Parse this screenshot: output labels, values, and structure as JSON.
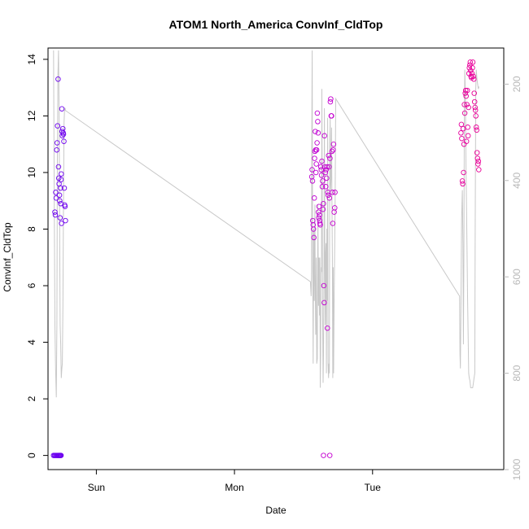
{
  "colors": {
    "background": "#ffffff",
    "axis": "#000000",
    "secondary_axis": "#b8b8b8",
    "pressure_line": "#c8c8c8",
    "point_sequence": [
      "#6a00f0",
      "#9a00e8",
      "#cc00cc",
      "#f0008c"
    ]
  },
  "chart_data": {
    "type": "scatter",
    "title": "ATOM1 North_America ConvInf_CldTop",
    "xlabel": "Date",
    "ylabel": "ConvInf_CldTop",
    "x_unit": "days since Saturday 00:00 (tick labels show weekday names)",
    "xlim": [
      0.65,
      3.95
    ],
    "ylim": [
      -0.5,
      14.4
    ],
    "grid": false,
    "legend": "none",
    "x_ticks": [
      {
        "value": 1,
        "label": "Sun"
      },
      {
        "value": 2,
        "label": "Mon"
      },
      {
        "value": 3,
        "label": "Tue"
      }
    ],
    "y_ticks": [
      0,
      2,
      4,
      6,
      8,
      10,
      12,
      14
    ],
    "y2_ticks": [
      200,
      400,
      600,
      800,
      1000
    ],
    "y2_lim": [
      1000,
      125
    ],
    "y2_reversed": true,
    "series": [
      {
        "kind": "scatter",
        "points": [
          [
            0.7,
            8.6
          ],
          [
            0.703,
            8.5
          ],
          [
            0.706,
            9.3
          ],
          [
            0.709,
            9.1
          ],
          [
            0.713,
            10.8
          ],
          [
            0.716,
            11.05
          ],
          [
            0.719,
            11.65
          ],
          [
            0.723,
            13.3
          ],
          [
            0.726,
            10.2
          ],
          [
            0.728,
            9.8
          ],
          [
            0.73,
            9.6
          ],
          [
            0.733,
            9.2
          ],
          [
            0.735,
            9.0
          ],
          [
            0.737,
            8.4
          ],
          [
            0.74,
            9.45
          ],
          [
            0.742,
            8.9
          ],
          [
            0.744,
            9.75
          ],
          [
            0.746,
            9.95
          ],
          [
            0.748,
            8.2
          ],
          [
            0.75,
            12.25
          ],
          [
            0.752,
            11.45
          ],
          [
            0.754,
            11.3
          ],
          [
            0.757,
            11.55
          ],
          [
            0.76,
            11.4
          ],
          [
            0.762,
            11.35
          ],
          [
            0.765,
            11.1
          ],
          [
            0.768,
            9.45
          ],
          [
            0.771,
            8.85
          ],
          [
            0.773,
            8.8
          ],
          [
            0.776,
            8.3
          ],
          [
            0.69,
            0.0
          ],
          [
            0.697,
            0.0
          ],
          [
            0.703,
            0.0
          ],
          [
            0.71,
            0.0
          ],
          [
            0.716,
            0.0
          ],
          [
            0.722,
            0.0
          ],
          [
            0.727,
            0.0
          ],
          [
            0.731,
            0.0
          ],
          [
            0.735,
            0.0
          ],
          [
            0.738,
            0.0
          ],
          [
            0.741,
            0.0
          ],
          [
            0.744,
            0.0
          ],
          [
            2.56,
            9.85
          ],
          [
            2.562,
            10.1
          ],
          [
            2.565,
            9.7
          ],
          [
            2.567,
            8.3
          ],
          [
            2.57,
            8.15
          ],
          [
            2.572,
            8.0
          ],
          [
            2.575,
            7.7
          ],
          [
            2.578,
            9.1
          ],
          [
            2.58,
            10.5
          ],
          [
            2.582,
            10.75
          ],
          [
            2.585,
            11.45
          ],
          [
            2.588,
            10.8
          ],
          [
            2.59,
            10.0
          ],
          [
            2.593,
            10.3
          ],
          [
            2.595,
            10.8
          ],
          [
            2.598,
            11.05
          ],
          [
            2.6,
            12.1
          ],
          [
            2.603,
            11.8
          ],
          [
            2.606,
            11.4
          ],
          [
            2.608,
            8.6
          ],
          [
            2.61,
            8.4
          ],
          [
            2.612,
            8.8
          ],
          [
            2.615,
            8.5
          ],
          [
            2.617,
            8.3
          ],
          [
            2.619,
            8.2
          ],
          [
            2.622,
            8.15
          ],
          [
            2.625,
            10.2
          ],
          [
            2.628,
            10.1
          ],
          [
            2.63,
            9.9
          ],
          [
            2.633,
            10.4
          ],
          [
            2.636,
            9.5
          ],
          [
            2.638,
            9.7
          ],
          [
            2.641,
            8.7
          ],
          [
            2.644,
            8.9
          ],
          [
            2.647,
            6.0
          ],
          [
            2.65,
            5.4
          ],
          [
            2.652,
            11.3
          ],
          [
            2.655,
            10.2
          ],
          [
            2.658,
            10.0
          ],
          [
            2.661,
            9.5
          ],
          [
            2.664,
            10.1
          ],
          [
            2.667,
            9.8
          ],
          [
            2.67,
            10.2
          ],
          [
            2.673,
            4.5
          ],
          [
            2.676,
            9.3
          ],
          [
            2.679,
            9.2
          ],
          [
            2.682,
            10.6
          ],
          [
            2.685,
            10.2
          ],
          [
            2.688,
            9.1
          ],
          [
            2.691,
            10.5
          ],
          [
            2.694,
            12.5
          ],
          [
            2.697,
            12.6
          ],
          [
            2.7,
            12.0
          ],
          [
            2.703,
            12.0
          ],
          [
            2.706,
            10.75
          ],
          [
            2.709,
            9.3
          ],
          [
            2.712,
            8.2
          ],
          [
            2.715,
            10.8
          ],
          [
            2.718,
            11.0
          ],
          [
            2.722,
            8.6
          ],
          [
            2.726,
            8.75
          ],
          [
            2.728,
            9.3
          ],
          [
            2.645,
            0.0
          ],
          [
            2.69,
            0.0
          ],
          [
            3.64,
            11.4
          ],
          [
            3.643,
            11.7
          ],
          [
            3.646,
            11.2
          ],
          [
            3.65,
            9.7
          ],
          [
            3.653,
            9.6
          ],
          [
            3.656,
            11.55
          ],
          [
            3.659,
            10.0
          ],
          [
            3.662,
            11.0
          ],
          [
            3.665,
            12.4
          ],
          [
            3.668,
            12.1
          ],
          [
            3.671,
            12.8
          ],
          [
            3.674,
            12.9
          ],
          [
            3.677,
            12.7
          ],
          [
            3.68,
            11.1
          ],
          [
            3.683,
            12.4
          ],
          [
            3.686,
            12.9
          ],
          [
            3.689,
            11.6
          ],
          [
            3.692,
            11.3
          ],
          [
            3.695,
            12.3
          ],
          [
            3.698,
            13.5
          ],
          [
            3.701,
            13.7
          ],
          [
            3.704,
            13.8
          ],
          [
            3.707,
            13.9
          ],
          [
            3.71,
            13.6
          ],
          [
            3.713,
            13.4
          ],
          [
            3.716,
            13.35
          ],
          [
            3.72,
            13.5
          ],
          [
            3.723,
            13.7
          ],
          [
            3.726,
            13.9
          ],
          [
            3.729,
            13.4
          ],
          [
            3.733,
            13.3
          ],
          [
            3.736,
            12.8
          ],
          [
            3.739,
            12.5
          ],
          [
            3.742,
            12.3
          ],
          [
            3.745,
            12.2
          ],
          [
            3.748,
            12.0
          ],
          [
            3.751,
            11.6
          ],
          [
            3.754,
            11.5
          ],
          [
            3.757,
            10.7
          ],
          [
            3.76,
            10.5
          ],
          [
            3.763,
            10.3
          ],
          [
            3.766,
            10.4
          ],
          [
            3.769,
            10.1
          ]
        ]
      },
      {
        "kind": "line",
        "axis": "y2",
        "points": [
          [
            0.69,
            130
          ],
          [
            0.695,
            420
          ],
          [
            0.7,
            700
          ],
          [
            0.705,
            790
          ],
          [
            0.71,
            850
          ],
          [
            0.714,
            700
          ],
          [
            0.718,
            350
          ],
          [
            0.722,
            180
          ],
          [
            0.726,
            130
          ],
          [
            0.73,
            250
          ],
          [
            0.734,
            500
          ],
          [
            0.738,
            700
          ],
          [
            0.742,
            740
          ],
          [
            0.746,
            810
          ],
          [
            0.75,
            790
          ],
          [
            0.754,
            780
          ],
          [
            0.758,
            660
          ],
          [
            0.762,
            450
          ],
          [
            0.766,
            280
          ],
          [
            0.77,
            250
          ],
          [
            0.774,
            250
          ],
          [
            0.778,
            255
          ],
          [
            2.55,
            610
          ],
          [
            2.555,
            640
          ],
          [
            2.558,
            590
          ],
          [
            2.56,
            300
          ],
          [
            2.563,
            130
          ],
          [
            2.566,
            520
          ],
          [
            2.57,
            780
          ],
          [
            2.574,
            500
          ],
          [
            2.578,
            650
          ],
          [
            2.582,
            450
          ],
          [
            2.585,
            620
          ],
          [
            2.588,
            720
          ],
          [
            2.592,
            560
          ],
          [
            2.596,
            780
          ],
          [
            2.6,
            770
          ],
          [
            2.604,
            450
          ],
          [
            2.608,
            660
          ],
          [
            2.612,
            560
          ],
          [
            2.615,
            680
          ],
          [
            2.618,
            560
          ],
          [
            2.621,
            830
          ],
          [
            2.624,
            760
          ],
          [
            2.627,
            580
          ],
          [
            2.63,
            590
          ],
          [
            2.633,
            210
          ],
          [
            2.636,
            450
          ],
          [
            2.639,
            700
          ],
          [
            2.642,
            820
          ],
          [
            2.645,
            760
          ],
          [
            2.648,
            600
          ],
          [
            2.651,
            250
          ],
          [
            2.654,
            560
          ],
          [
            2.657,
            700
          ],
          [
            2.66,
            550
          ],
          [
            2.663,
            530
          ],
          [
            2.666,
            800
          ],
          [
            2.669,
            500
          ],
          [
            2.672,
            650
          ],
          [
            2.675,
            270
          ],
          [
            2.678,
            780
          ],
          [
            2.681,
            810
          ],
          [
            2.684,
            780
          ],
          [
            2.687,
            800
          ],
          [
            2.69,
            320
          ],
          [
            2.693,
            270
          ],
          [
            2.696,
            420
          ],
          [
            2.7,
            390
          ],
          [
            2.703,
            290
          ],
          [
            2.706,
            450
          ],
          [
            2.709,
            560
          ],
          [
            2.712,
            810
          ],
          [
            2.715,
            580
          ],
          [
            2.718,
            800
          ],
          [
            2.722,
            640
          ],
          [
            2.726,
            530
          ],
          [
            2.729,
            440
          ],
          [
            2.733,
            230
          ],
          [
            3.63,
            640
          ],
          [
            3.633,
            760
          ],
          [
            3.636,
            790
          ],
          [
            3.64,
            660
          ],
          [
            3.645,
            480
          ],
          [
            3.65,
            420
          ],
          [
            3.654,
            530
          ],
          [
            3.658,
            740
          ],
          [
            3.661,
            560
          ],
          [
            3.664,
            290
          ],
          [
            3.668,
            170
          ],
          [
            3.672,
            220
          ],
          [
            3.676,
            360
          ],
          [
            3.68,
            450
          ],
          [
            3.684,
            550
          ],
          [
            3.688,
            640
          ],
          [
            3.692,
            720
          ],
          [
            3.696,
            800
          ],
          [
            3.7,
            810
          ],
          [
            3.705,
            815
          ],
          [
            3.71,
            830
          ],
          [
            3.715,
            830
          ],
          [
            3.72,
            830
          ],
          [
            3.725,
            830
          ],
          [
            3.73,
            820
          ],
          [
            3.735,
            810
          ],
          [
            3.74,
            800
          ],
          [
            3.743,
            500
          ],
          [
            3.747,
            210
          ],
          [
            3.751,
            170
          ],
          [
            3.756,
            190
          ],
          [
            3.761,
            200
          ],
          [
            3.766,
            210
          ],
          [
            3.77,
            205
          ]
        ]
      }
    ]
  }
}
